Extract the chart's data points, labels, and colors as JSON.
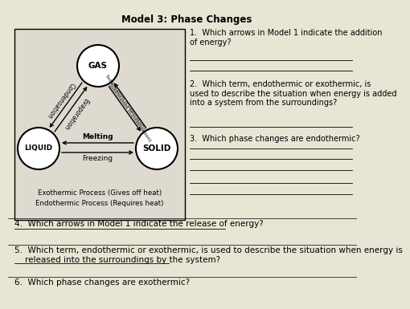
{
  "title": "Model 3: Phase Changes",
  "bg_color": "#e8e5d5",
  "box_bg": "#dedad0",
  "diagram_labels": {
    "gas": "GAS",
    "liquid": "LIQUID",
    "solid": "SOLID"
  },
  "legend": [
    "Exothermic Process (Gives off heat)",
    "Endothermic Process (Requires heat)"
  ],
  "q1": "1.  Which arrows in Model 1 indicate the addition\nof energy?",
  "q1_lines": [
    65,
    78
  ],
  "q2": "2.  Which term, endothermic or exothermic, is\nused to describe the situation when energy is added\ninto a system from the surroundings?",
  "q2_line": 148,
  "q3": "3.  Which phase changes are endothermic?",
  "q3_lines": [
    175,
    188,
    202,
    218,
    232
  ],
  "q4": "4.  Which arrows in Model 1 indicate the release of energy?",
  "q4_line": 262,
  "q4_answer_line": 275,
  "q5": "5.  Which term, endothermic or exothermic, is used to describe the situation when energy is\n    released into the surroundings by the system?",
  "q5_line": 295,
  "q5_answer_line": 318,
  "q6": "6.  Which phase changes are exothermic?",
  "q6_line": 335
}
